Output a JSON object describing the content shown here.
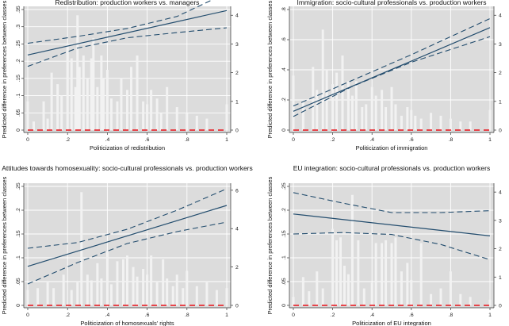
{
  "figure": {
    "shared_ylabel": "Predicted difference in preferences between classes"
  },
  "chart_data": [
    {
      "type": "line",
      "title": "Redistribution: production workers vs. managers",
      "xlabel": "Politicization of redistribution",
      "ylabel": "Predicted difference in preferences between classes",
      "xlim": [
        0,
        1
      ],
      "ylim": [
        0,
        0.35
      ],
      "y2lim": [
        0,
        4.2
      ],
      "xticks": [
        0,
        0.2,
        0.4,
        0.6,
        0.8,
        1
      ],
      "xtick_labels": [
        "0",
        ".2",
        ".4",
        ".6",
        ".8",
        "1"
      ],
      "yticks": [
        0,
        0.05,
        0.1,
        0.15,
        0.2,
        0.25,
        0.3,
        0.35
      ],
      "ytick_labels": [
        "0",
        ".05",
        ".1",
        ".15",
        ".2",
        ".25",
        ".3",
        ".35"
      ],
      "y2ticks": [
        0,
        1,
        2,
        3,
        4
      ],
      "y2tick_labels": [
        "0",
        "1",
        "2",
        "3",
        "4"
      ],
      "series": [
        {
          "name": "Predicted difference",
          "style": "solid",
          "x": [
            0,
            1
          ],
          "values": [
            0.218,
            0.347
          ]
        },
        {
          "name": "Upper 95% CI",
          "style": "dashed",
          "x": [
            0,
            0.25,
            0.5,
            0.75,
            1
          ],
          "values": [
            0.252,
            0.272,
            0.295,
            0.33,
            0.398
          ]
        },
        {
          "name": "Lower 95% CI",
          "style": "dashed",
          "x": [
            0,
            0.25,
            0.5,
            0.75,
            1
          ],
          "values": [
            0.185,
            0.238,
            0.268,
            0.283,
            0.297
          ]
        },
        {
          "name": "Zero line",
          "style": "red-dashed",
          "x": [
            0,
            1
          ],
          "values": [
            0,
            0
          ]
        }
      ],
      "histogram": {
        "axis": "right",
        "x": [
          0,
          0.03,
          0.08,
          0.1,
          0.12,
          0.15,
          0.17,
          0.2,
          0.22,
          0.24,
          0.25,
          0.26,
          0.28,
          0.3,
          0.32,
          0.33,
          0.35,
          0.37,
          0.38,
          0.4,
          0.42,
          0.45,
          0.47,
          0.5,
          0.52,
          0.55,
          0.58,
          0.6,
          0.62,
          0.65,
          0.67,
          0.7,
          0.75,
          0.8,
          0.85,
          0.9,
          1
        ],
        "counts": [
          1,
          0.3,
          1,
          0.4,
          2,
          1.6,
          1.2,
          3,
          2.5,
          1.5,
          4,
          2.2,
          2.6,
          1.8,
          2.5,
          3.2,
          1.5,
          2.6,
          1.8,
          2.1,
          1.1,
          1,
          1.8,
          1.4,
          2.2,
          2.6,
          1,
          0.9,
          1.4,
          1.1,
          0.6,
          1.5,
          0.8,
          0.6,
          0.5,
          0.4,
          0.9
        ]
      }
    },
    {
      "type": "line",
      "title": "Immigration: socio-cultural professionals vs. production workers",
      "xlabel": "Politicization of immigration",
      "ylabel": "Predicted difference in preferences between classes",
      "xlim": [
        0,
        1
      ],
      "ylim": [
        0,
        0.8
      ],
      "y2lim": [
        0,
        4.2
      ],
      "xticks": [
        0,
        0.2,
        0.4,
        0.6,
        0.8,
        1
      ],
      "xtick_labels": [
        "0",
        ".2",
        ".4",
        ".6",
        ".8",
        "1"
      ],
      "yticks": [
        0,
        0.2,
        0.4,
        0.6,
        0.8
      ],
      "ytick_labels": [
        "0",
        ".2",
        ".4",
        ".6",
        ".8"
      ],
      "y2ticks": [
        0,
        1,
        2,
        3,
        4
      ],
      "y2tick_labels": [
        "0",
        "1",
        "2",
        "3",
        "4"
      ],
      "series": [
        {
          "name": "Predicted difference",
          "style": "solid",
          "x": [
            0,
            1
          ],
          "values": [
            0.125,
            0.68
          ]
        },
        {
          "name": "Upper 95% CI",
          "style": "dashed",
          "x": [
            0,
            0.3,
            0.6,
            1
          ],
          "values": [
            0.16,
            0.33,
            0.5,
            0.74
          ]
        },
        {
          "name": "Lower 95% CI",
          "style": "dashed",
          "x": [
            0,
            0.3,
            0.6,
            1
          ],
          "values": [
            0.09,
            0.29,
            0.45,
            0.62
          ]
        },
        {
          "name": "Zero line",
          "style": "red-dashed",
          "x": [
            0,
            1
          ],
          "values": [
            0,
            0
          ]
        }
      ],
      "histogram": {
        "axis": "right",
        "x": [
          0,
          0.05,
          0.1,
          0.12,
          0.15,
          0.17,
          0.2,
          0.22,
          0.25,
          0.28,
          0.3,
          0.32,
          0.35,
          0.37,
          0.4,
          0.42,
          0.45,
          0.47,
          0.5,
          0.52,
          0.55,
          0.58,
          0.6,
          0.62,
          0.65,
          0.7,
          0.75,
          0.8,
          0.85,
          0.9,
          1
        ],
        "counts": [
          1.9,
          1,
          2.2,
          1.4,
          3.5,
          2.1,
          1.6,
          2,
          2.6,
          1.7,
          1.2,
          1.7,
          0.8,
          0.9,
          1.5,
          1.2,
          1.4,
          0.8,
          1.5,
          0.9,
          0.5,
          0.8,
          0.7,
          0.5,
          0.4,
          0.6,
          0.5,
          0.4,
          0.3,
          0.3,
          0.7
        ]
      }
    },
    {
      "type": "line",
      "title": "Attitudes towards homosexuality: socio-cultural professionals vs. production workers",
      "xlabel": "Politicization of homosexuals' rights",
      "ylabel": "Predicted difference in preferences between classes",
      "xlim": [
        0,
        1
      ],
      "ylim": [
        0,
        0.25
      ],
      "y2lim": [
        0,
        6.2
      ],
      "xticks": [
        0,
        0.2,
        0.4,
        0.6,
        0.8,
        1
      ],
      "xtick_labels": [
        "0",
        ".2",
        ".4",
        ".6",
        ".8",
        "1"
      ],
      "yticks": [
        0,
        0.05,
        0.1,
        0.15,
        0.2,
        0.25
      ],
      "ytick_labels": [
        "0",
        ".05",
        ".1",
        ".15",
        ".2",
        ".25"
      ],
      "y2ticks": [
        0,
        2,
        4,
        6
      ],
      "y2tick_labels": [
        "0",
        "2",
        "4",
        "6"
      ],
      "series": [
        {
          "name": "Predicted difference",
          "style": "solid",
          "x": [
            0,
            1
          ],
          "values": [
            0.082,
            0.21
          ]
        },
        {
          "name": "Upper 95% CI",
          "style": "dashed",
          "x": [
            0,
            0.25,
            0.5,
            0.75,
            1
          ],
          "values": [
            0.12,
            0.132,
            0.16,
            0.2,
            0.245
          ]
        },
        {
          "name": "Lower 95% CI",
          "style": "dashed",
          "x": [
            0,
            0.25,
            0.5,
            0.75,
            1
          ],
          "values": [
            0.045,
            0.09,
            0.13,
            0.155,
            0.175
          ]
        },
        {
          "name": "Zero line",
          "style": "red-dashed",
          "x": [
            0,
            1
          ],
          "values": [
            0,
            0
          ]
        }
      ],
      "histogram": {
        "axis": "right",
        "x": [
          0,
          0.05,
          0.1,
          0.13,
          0.18,
          0.22,
          0.25,
          0.27,
          0.3,
          0.32,
          0.35,
          0.37,
          0.4,
          0.42,
          0.45,
          0.48,
          0.5,
          0.53,
          0.55,
          0.58,
          0.6,
          0.62,
          0.65,
          0.68,
          0.7,
          0.73,
          0.75,
          0.78,
          0.8,
          0.85,
          0.9,
          0.95,
          1
        ],
        "counts": [
          0.8,
          0.9,
          1.2,
          0.9,
          1.6,
          0.8,
          1.2,
          5.9,
          1.6,
          1.3,
          2.2,
          1.4,
          2.8,
          1.1,
          2.3,
          2.4,
          2.6,
          2,
          1.5,
          1.9,
          1.6,
          2.6,
          1.2,
          2.4,
          1.4,
          1,
          1.6,
          0.9,
          1.8,
          1,
          1.2,
          0.8,
          0.9
        ]
      }
    },
    {
      "type": "line",
      "title": "EU integration: socio-cultural professionals vs. production workers",
      "xlabel": "Politicization of EU integration",
      "ylabel": "Predicted difference in preferences between classes",
      "xlim": [
        0,
        1
      ],
      "ylim": [
        0,
        0.25
      ],
      "y2lim": [
        0,
        4.2
      ],
      "xticks": [
        0,
        0.2,
        0.4,
        0.6,
        0.8,
        1
      ],
      "xtick_labels": [
        "0",
        ".2",
        ".4",
        ".6",
        ".8",
        "1"
      ],
      "yticks": [
        0,
        0.05,
        0.1,
        0.15,
        0.2,
        0.25
      ],
      "ytick_labels": [
        "0",
        ".05",
        ".1",
        ".15",
        ".2",
        ".25"
      ],
      "y2ticks": [
        0,
        1,
        2,
        3,
        4
      ],
      "y2tick_labels": [
        "0",
        "1",
        "2",
        "3",
        "4"
      ],
      "series": [
        {
          "name": "Predicted difference",
          "style": "solid",
          "x": [
            0,
            1
          ],
          "values": [
            0.192,
            0.146
          ]
        },
        {
          "name": "Upper 95% CI",
          "style": "dashed",
          "x": [
            0,
            0.25,
            0.5,
            0.75,
            1
          ],
          "values": [
            0.237,
            0.215,
            0.195,
            0.195,
            0.199
          ]
        },
        {
          "name": "Lower 95% CI",
          "style": "dashed",
          "x": [
            0,
            0.25,
            0.5,
            0.75,
            1
          ],
          "values": [
            0.15,
            0.153,
            0.149,
            0.128,
            0.096
          ]
        },
        {
          "name": "Zero line",
          "style": "red-dashed",
          "x": [
            0,
            1
          ],
          "values": [
            0,
            0
          ]
        }
      ],
      "histogram": {
        "axis": "right",
        "x": [
          0,
          0.05,
          0.08,
          0.12,
          0.15,
          0.2,
          0.22,
          0.24,
          0.26,
          0.28,
          0.3,
          0.33,
          0.36,
          0.4,
          0.42,
          0.45,
          0.47,
          0.5,
          0.52,
          0.55,
          0.58,
          0.6,
          0.65,
          0.7,
          0.75,
          0.8,
          0.85,
          0.9,
          1
        ],
        "counts": [
          0.3,
          1,
          0.5,
          1.2,
          0.6,
          2.7,
          2.3,
          2.4,
          1.4,
          1.1,
          3.9,
          2.3,
          0.6,
          0.8,
          2.2,
          2.2,
          2.3,
          2.2,
          2.4,
          1.2,
          1.5,
          0.9,
          2.2,
          0.4,
          0.6,
          1.2,
          0.4,
          0.3,
          0.2
        ]
      }
    }
  ]
}
